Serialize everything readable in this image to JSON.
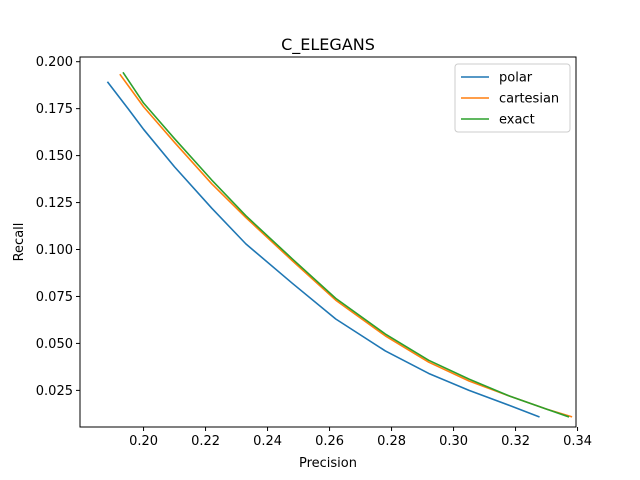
{
  "chart_data": {
    "type": "line",
    "title": "C_ELEGANS",
    "xlabel": "Precision",
    "ylabel": "Recall",
    "xlim": [
      0.1795,
      0.3395
    ],
    "ylim": [
      0.0055,
      0.2025
    ],
    "xticks": [
      0.2,
      0.22,
      0.24,
      0.26,
      0.28,
      0.3,
      0.32,
      0.34
    ],
    "xtick_labels": [
      "0.20",
      "0.22",
      "0.24",
      "0.26",
      "0.28",
      "0.30",
      "0.32",
      "0.34"
    ],
    "yticks": [
      0.025,
      0.05,
      0.075,
      0.1,
      0.125,
      0.15,
      0.175,
      0.2
    ],
    "ytick_labels": [
      "0.025",
      "0.050",
      "0.075",
      "0.100",
      "0.125",
      "0.150",
      "0.175",
      "0.200"
    ],
    "grid": false,
    "legend_position": "top-right",
    "series": [
      {
        "name": "polar",
        "color": "#1f77b4",
        "x": [
          0.1885,
          0.195,
          0.2,
          0.21,
          0.222,
          0.233,
          0.248,
          0.262,
          0.278,
          0.292,
          0.305,
          0.318,
          0.3275
        ],
        "y": [
          0.189,
          0.175,
          0.164,
          0.144,
          0.122,
          0.103,
          0.082,
          0.063,
          0.046,
          0.034,
          0.025,
          0.017,
          0.011
        ]
      },
      {
        "name": "cartesian",
        "color": "#ff7f0e",
        "x": [
          0.1925,
          0.2,
          0.21,
          0.222,
          0.233,
          0.248,
          0.262,
          0.278,
          0.292,
          0.305,
          0.318,
          0.33,
          0.338
        ],
        "y": [
          0.193,
          0.176,
          0.157,
          0.135,
          0.117,
          0.094,
          0.073,
          0.054,
          0.04,
          0.03,
          0.022,
          0.015,
          0.011
        ]
      },
      {
        "name": "exact",
        "color": "#2ca02c",
        "x": [
          0.1935,
          0.2,
          0.21,
          0.222,
          0.233,
          0.248,
          0.262,
          0.278,
          0.292,
          0.305,
          0.318,
          0.33,
          0.337
        ],
        "y": [
          0.194,
          0.178,
          0.159,
          0.137,
          0.118,
          0.095,
          0.074,
          0.055,
          0.041,
          0.031,
          0.022,
          0.015,
          0.011
        ]
      }
    ]
  }
}
